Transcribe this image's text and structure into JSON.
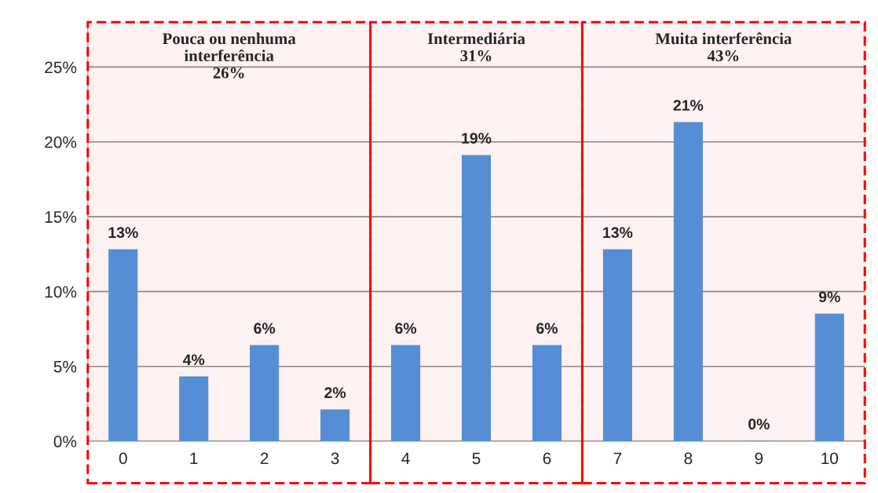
{
  "chart_data": {
    "type": "bar",
    "x": [
      0,
      1,
      2,
      3,
      4,
      5,
      6,
      7,
      8,
      9,
      10
    ],
    "values": [
      12.8,
      4.3,
      6.4,
      2.1,
      6.4,
      19.1,
      6.4,
      12.8,
      21.3,
      0,
      8.5
    ],
    "value_labels": [
      "13%",
      "4%",
      "6%",
      "2%",
      "6%",
      "19%",
      "6%",
      "13%",
      "21%",
      "0%",
      "9%"
    ],
    "color": "#558ed5",
    "xlim": [
      -0.5,
      10.5
    ],
    "xticks": [
      0,
      1,
      2,
      3,
      4,
      5,
      6,
      7,
      8,
      9,
      10
    ],
    "ylim": [
      0,
      28
    ],
    "yticks": [
      {
        "value": 0,
        "label": "0%"
      },
      {
        "value": 5,
        "label": "5%"
      },
      {
        "value": 10,
        "label": "10%"
      },
      {
        "value": 15,
        "label": "15%"
      },
      {
        "value": 20,
        "label": "20%"
      },
      {
        "value": 25,
        "label": "25%"
      }
    ],
    "grid": "y",
    "bands": [
      {
        "axis": "x",
        "from": -0.5,
        "to": 3.5,
        "label": "Pouca ou nenhuma\ninterferência\n26%",
        "color": "#ff0000"
      },
      {
        "axis": "x",
        "from": 3.5,
        "to": 6.5,
        "label": "Intermediária\n31%",
        "color": "#ff0000"
      },
      {
        "axis": "x",
        "from": 6.5,
        "to": 10.5,
        "label": "Muita interferência\n43%",
        "color": "#ff0000"
      }
    ]
  }
}
